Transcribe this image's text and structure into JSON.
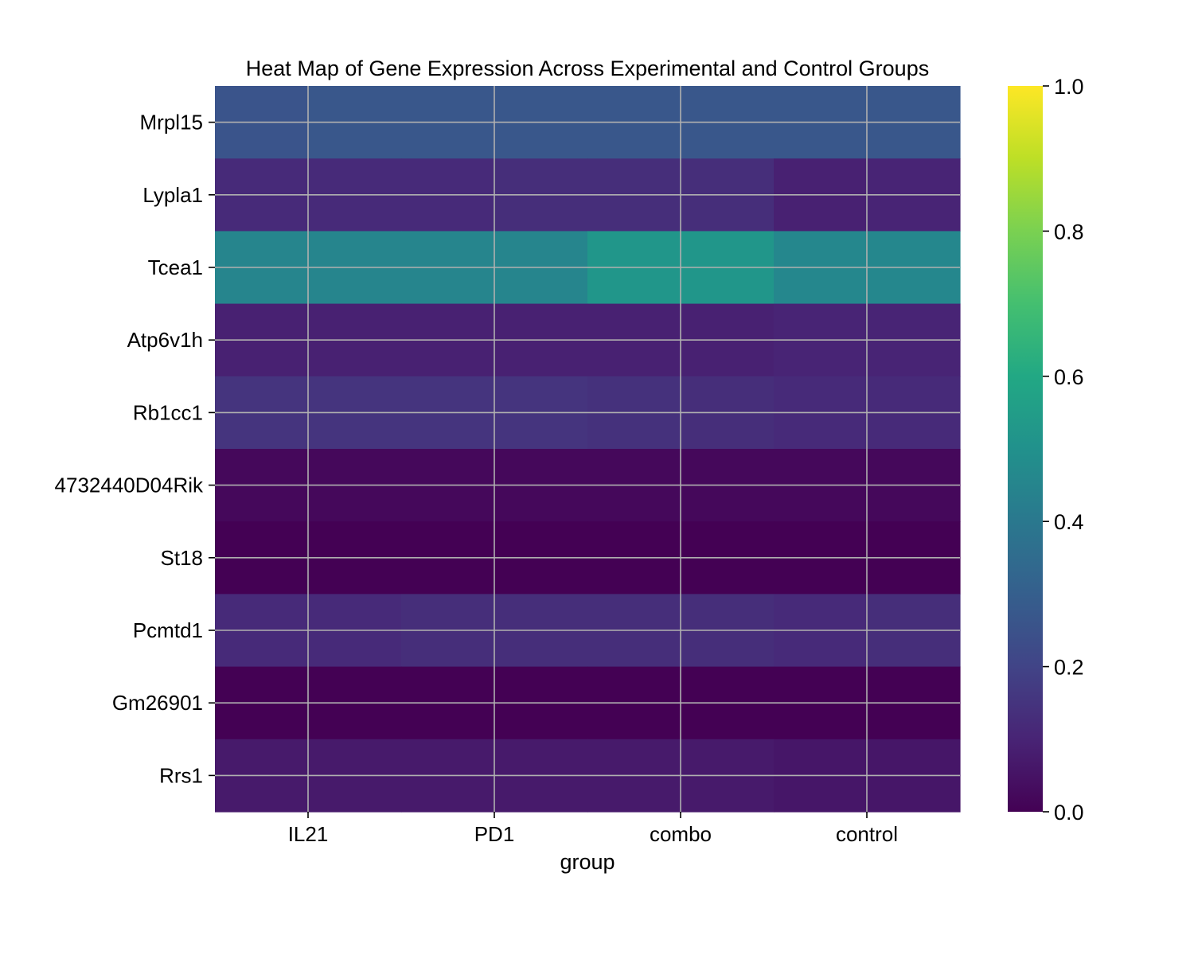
{
  "chart_data": {
    "type": "heatmap",
    "title": "Heat Map of Gene Expression Across Experimental and Control Groups",
    "xlabel": "group",
    "ylabel": "",
    "x_categories": [
      "IL21",
      "PD1",
      "combo",
      "control"
    ],
    "y_categories": [
      "Mrpl15",
      "Lypla1",
      "Tcea1",
      "Atp6v1h",
      "Rb1cc1",
      "4732440D04Rik",
      "St18",
      "Pcmtd1",
      "Gm26901",
      "Rrs1"
    ],
    "columns_per_group": 8,
    "values": [
      [
        0.26,
        0.27,
        0.27,
        0.27,
        0.27,
        0.27,
        0.27,
        0.27
      ],
      [
        0.12,
        0.12,
        0.12,
        0.13,
        0.13,
        0.13,
        0.09,
        0.1
      ],
      [
        0.45,
        0.45,
        0.45,
        0.45,
        0.52,
        0.52,
        0.46,
        0.46
      ],
      [
        0.09,
        0.09,
        0.09,
        0.09,
        0.09,
        0.09,
        0.1,
        0.1
      ],
      [
        0.15,
        0.15,
        0.15,
        0.15,
        0.14,
        0.13,
        0.12,
        0.12
      ],
      [
        0.02,
        0.02,
        0.02,
        0.02,
        0.02,
        0.02,
        0.02,
        0.02
      ],
      [
        0.0,
        0.0,
        0.0,
        0.0,
        0.0,
        0.0,
        0.0,
        0.0
      ],
      [
        0.12,
        0.12,
        0.13,
        0.13,
        0.13,
        0.13,
        0.12,
        0.13
      ],
      [
        0.0,
        0.0,
        0.0,
        0.0,
        0.0,
        0.0,
        0.0,
        0.0
      ],
      [
        0.07,
        0.07,
        0.07,
        0.07,
        0.07,
        0.07,
        0.06,
        0.06
      ]
    ],
    "colormap": "viridis",
    "vmin": 0.0,
    "vmax": 1.0,
    "colorbar_ticks": [
      "0.0",
      "0.2",
      "0.4",
      "0.6",
      "0.8",
      "1.0"
    ],
    "grid": true,
    "grid_color": "#b0b0b0"
  }
}
